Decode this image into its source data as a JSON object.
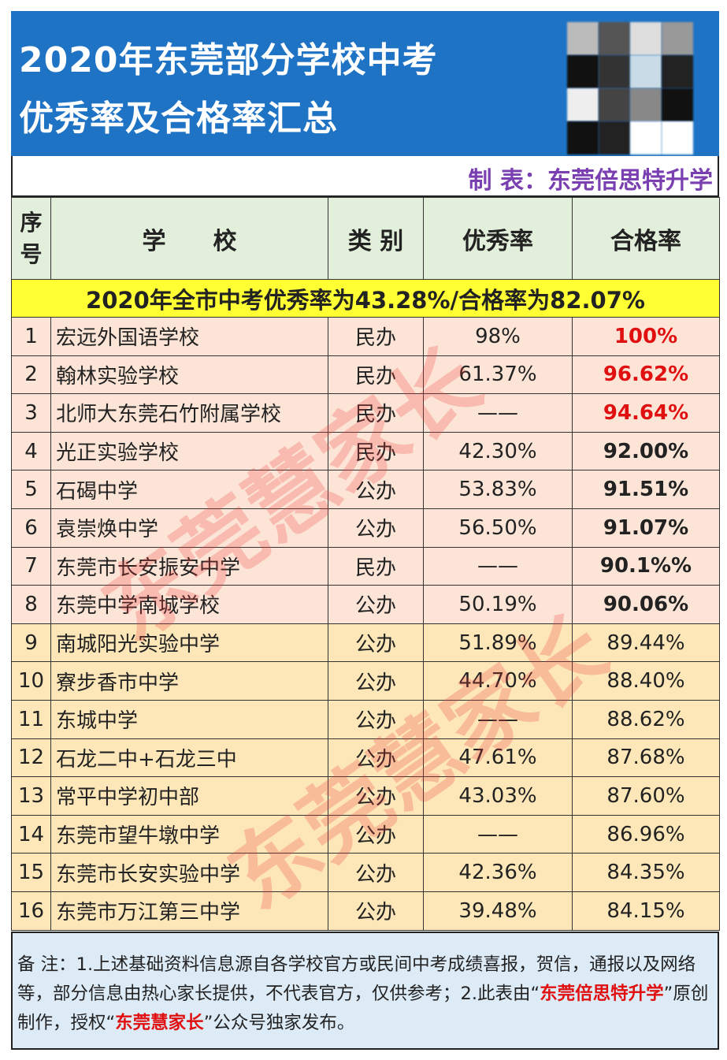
{
  "title": {
    "line1": "2020年东莞部分学校中考",
    "line2": "优秀率及合格率汇总"
  },
  "maker": "制 表：东莞倍思特升学",
  "headers": {
    "seq": "序号",
    "school": "学　　校",
    "type": "类 别",
    "excellent": "优秀率",
    "pass": "合格率"
  },
  "summary": "2020年全市中考优秀率为43.28%/合格率为82.07%",
  "rows": [
    {
      "no": "1",
      "school": "宏远外国语学校",
      "type": "民办",
      "excellent": "98%",
      "pass": "100%",
      "style": "red"
    },
    {
      "no": "2",
      "school": "翰林实验学校",
      "type": "民办",
      "excellent": "61.37%",
      "pass": "96.62%",
      "style": "red"
    },
    {
      "no": "3",
      "school": "北师大东莞石竹附属学校",
      "type": "民办",
      "excellent": "——",
      "pass": "94.64%",
      "style": "red"
    },
    {
      "no": "4",
      "school": "光正实验学校",
      "type": "民办",
      "excellent": "42.30%",
      "pass": "92.00%",
      "style": "bold"
    },
    {
      "no": "5",
      "school": "石碣中学",
      "type": "公办",
      "excellent": "53.83%",
      "pass": "91.51%",
      "style": "bold"
    },
    {
      "no": "6",
      "school": "袁崇焕中学",
      "type": "公办",
      "excellent": "56.50%",
      "pass": "91.07%",
      "style": "bold"
    },
    {
      "no": "7",
      "school": "东莞市长安振安中学",
      "type": "民办",
      "excellent": "——",
      "pass": "90.1%%",
      "style": "bold"
    },
    {
      "no": "8",
      "school": "东莞中学南城学校",
      "type": "公办",
      "excellent": "50.19%",
      "pass": "90.06%",
      "style": "bold"
    },
    {
      "no": "9",
      "school": "南城阳光实验中学",
      "type": "公办",
      "excellent": "51.89%",
      "pass": "89.44%",
      "style": ""
    },
    {
      "no": "10",
      "school": "寮步香市中学",
      "type": "公办",
      "excellent": "44.70%",
      "pass": "88.40%",
      "style": ""
    },
    {
      "no": "11",
      "school": "东城中学",
      "type": "公办",
      "excellent": "——",
      "pass": "88.62%",
      "style": ""
    },
    {
      "no": "12",
      "school": "石龙二中+石龙三中",
      "type": "公办",
      "excellent": "47.61%",
      "pass": "87.68%",
      "style": ""
    },
    {
      "no": "13",
      "school": "常平中学初中部",
      "type": "公办",
      "excellent": "43.03%",
      "pass": "87.60%",
      "style": ""
    },
    {
      "no": "14",
      "school": "东莞市望牛墩中学",
      "type": "公办",
      "excellent": "——",
      "pass": "86.96%",
      "style": ""
    },
    {
      "no": "15",
      "school": "东莞市长安实验中学",
      "type": "公办",
      "excellent": "42.36%",
      "pass": "84.35%",
      "style": ""
    },
    {
      "no": "16",
      "school": "东莞市万江第三中学",
      "type": "公办",
      "excellent": "39.48%",
      "pass": "84.15%",
      "style": ""
    }
  ],
  "note": {
    "p1": "备 注：1.上述基础资料信息源自各学校官方或民间中考成绩喜报，贺信，通报以及网络等，部分信息由热心家长提供，不代表官方，仅供参考；2.此表由“",
    "hl1": "东莞倍思特升学",
    "p2": "”原创制作，授权“",
    "hl2": "东莞慧家长",
    "p3": "”公众号独家发布。"
  },
  "watermark": "东莞慧家长",
  "colors": {
    "banner": "#1f73c4",
    "header": "#e2efda",
    "summary": "#ffff33",
    "rows_top": "#fce4d6",
    "rows_bottom": "#fde7b8",
    "note": "#ddebf7",
    "highlight": "#e01010",
    "maker": "#7a3fb0"
  }
}
